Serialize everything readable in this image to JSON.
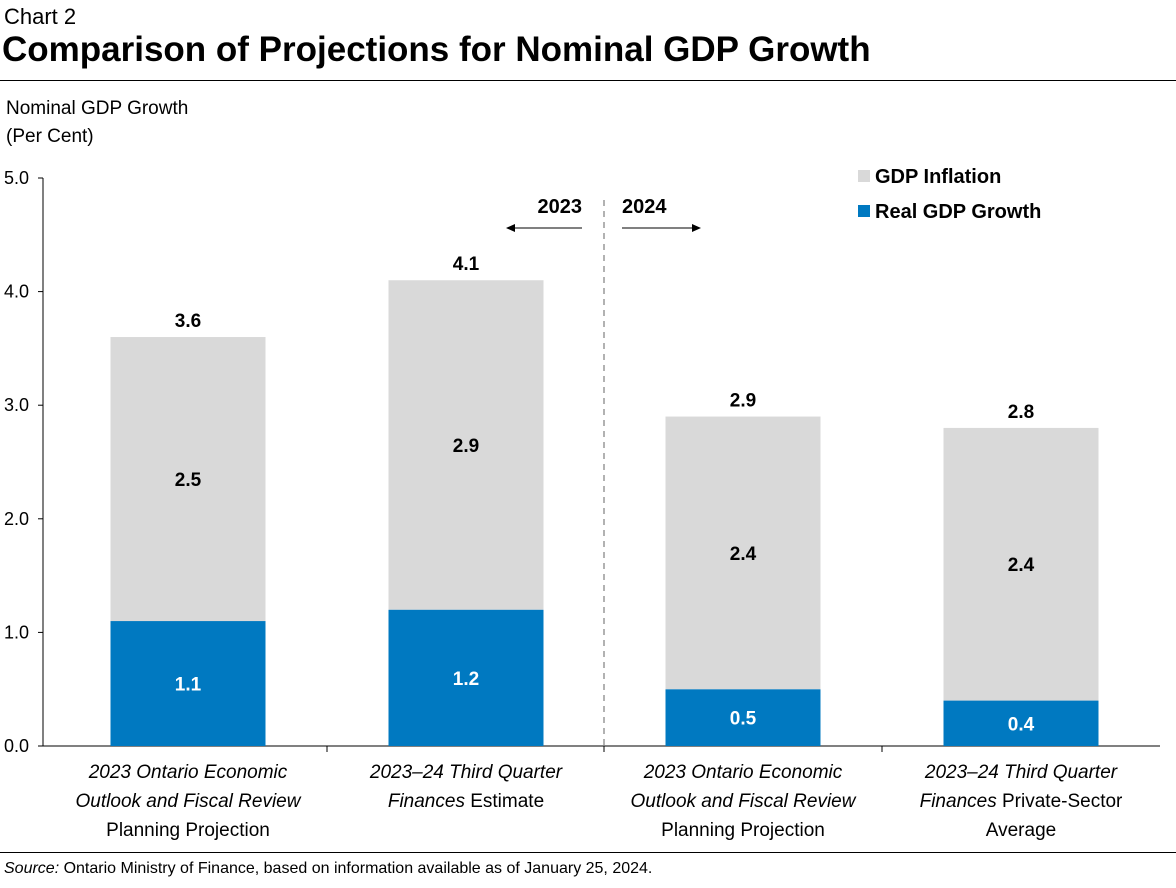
{
  "header": {
    "kicker": "Chart 2",
    "title": "Comparison of Projections for Nominal GDP Growth"
  },
  "source": {
    "label": "Source:",
    "text": " Ontario Ministry of Finance, based on information available as of January 25, 2024."
  },
  "colors": {
    "gdp_inflation": "#d9d9d9",
    "real_gdp_growth": "#0079c1"
  },
  "chart_data": {
    "type": "bar",
    "stacked": true,
    "ylabel_lines": [
      "Nominal GDP Growth",
      "(Per Cent)"
    ],
    "ylim": [
      0,
      5.0
    ],
    "yticks": [
      "0.0",
      "1.0",
      "2.0",
      "3.0",
      "4.0",
      "5.0"
    ],
    "ytick_values": [
      0,
      1,
      2,
      3,
      4,
      5
    ],
    "categories": [
      [
        [
          {
            "text": "2023 Ontario Economic",
            "italic": true
          }
        ],
        [
          {
            "text": "Outlook and Fiscal Review",
            "italic": true
          }
        ],
        [
          {
            "text": "Planning Projection",
            "italic": false
          }
        ]
      ],
      [
        [
          {
            "text": "2023–24 Third Quarter",
            "italic": true
          }
        ],
        [
          {
            "text": "Finances",
            "italic": true
          },
          {
            "text": " Estimate",
            "italic": false
          }
        ]
      ],
      [
        [
          {
            "text": "2023 Ontario Economic",
            "italic": true
          }
        ],
        [
          {
            "text": "Outlook and Fiscal Review",
            "italic": true
          }
        ],
        [
          {
            "text": "Planning Projection",
            "italic": false
          }
        ]
      ],
      [
        [
          {
            "text": "2023–24 Third Quarter",
            "italic": true
          }
        ],
        [
          {
            "text": "Finances",
            "italic": true
          },
          {
            "text": " Private-Sector",
            "italic": false
          }
        ],
        [
          {
            "text": "Average",
            "italic": false
          }
        ]
      ]
    ],
    "series": [
      {
        "name": "Real GDP Growth",
        "values": [
          1.1,
          1.2,
          0.5,
          0.4
        ],
        "labels": [
          "1.1",
          "1.2",
          "0.5",
          "0.4"
        ]
      },
      {
        "name": "GDP Inflation",
        "values": [
          2.5,
          2.9,
          2.4,
          2.4
        ],
        "labels": [
          "2.5",
          "2.9",
          "2.4",
          "2.4"
        ]
      }
    ],
    "totals": [
      3.6,
      4.1,
      2.9,
      2.8
    ],
    "total_labels": [
      "3.6",
      "4.1",
      "2.9",
      "2.8"
    ],
    "legend": {
      "position": "top-right",
      "items": [
        {
          "label": "GDP Inflation",
          "series": "GDP Inflation"
        },
        {
          "label": "Real GDP Growth",
          "series": "Real GDP Growth"
        }
      ]
    },
    "period_annotations": [
      {
        "label": "2023",
        "direction": "left"
      },
      {
        "label": "2024",
        "direction": "right"
      }
    ]
  }
}
